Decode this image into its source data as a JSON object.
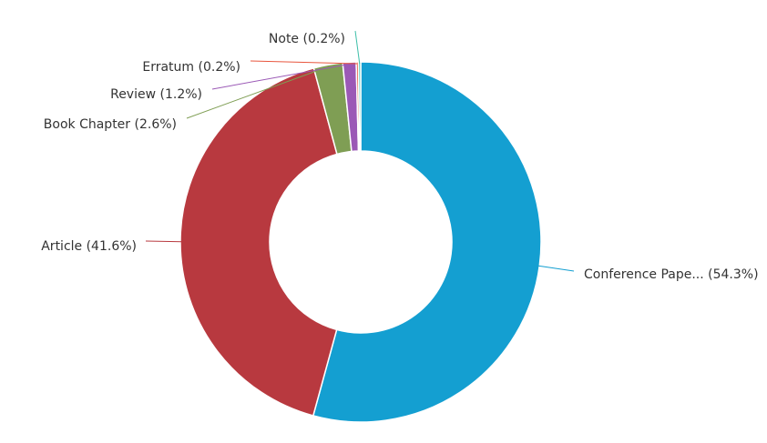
{
  "chart_data": {
    "type": "pie",
    "variant": "donut",
    "categories": [
      "Conference Pape...",
      "Article",
      "Book Chapter",
      "Review",
      "Erratum",
      "Note"
    ],
    "values": [
      54.3,
      41.6,
      2.6,
      1.2,
      0.2,
      0.2
    ],
    "labels": [
      "Conference Pape... (54.3%)",
      "Article (41.6%)",
      "Book Chapter (2.6%)",
      "Review (1.2%)",
      "Erratum (0.2%)",
      "Note (0.2%)"
    ],
    "colors": [
      "#149fd1",
      "#b8393f",
      "#7f9e54",
      "#9b59b6",
      "#e8553d",
      "#3ebfa9"
    ],
    "start": "12 o'clock",
    "direction": "clockwise",
    "legend": "none"
  }
}
